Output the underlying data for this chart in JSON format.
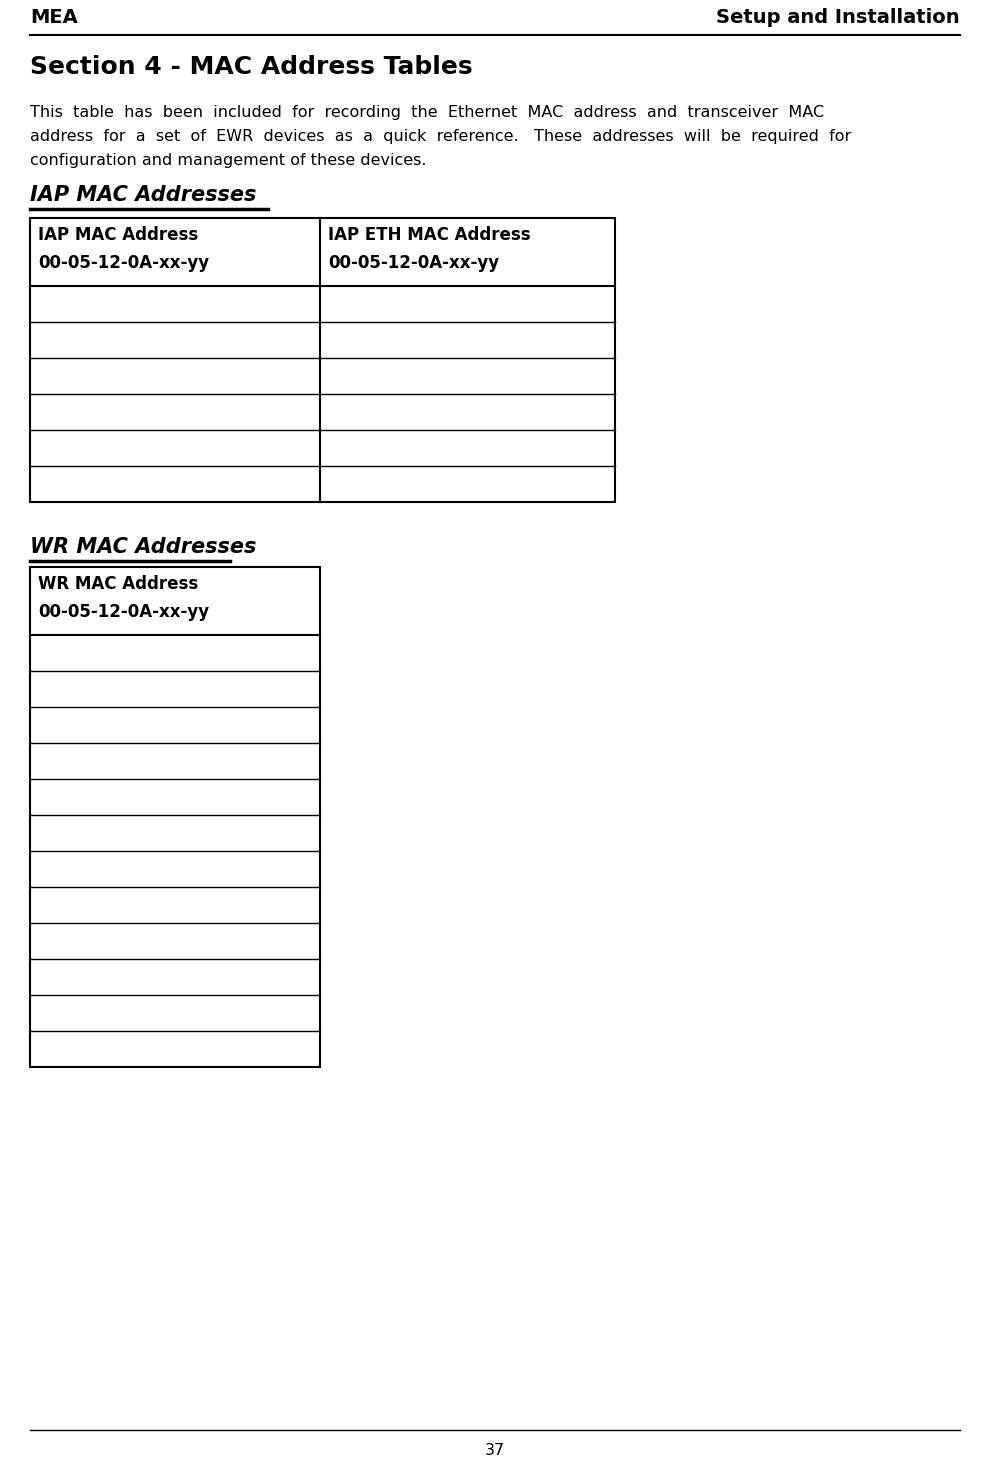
{
  "header_left": "MEA",
  "header_right": "Setup and Installation",
  "section_title": "Section 4 - MAC Address Tables",
  "desc_line1": "This  table  has  been  included  for  recording  the  Ethernet  MAC  address  and  transceiver  MAC",
  "desc_line2": "address  for  a  set  of  EWR  devices  as  a  quick  reference.   These  addresses  will  be  required  for",
  "desc_line3": "configuration and management of these devices.",
  "iap_section_title": "IAP MAC Addresses",
  "iap_col1_header1": "IAP MAC Address",
  "iap_col1_header2": "00-05-12-0A-xx-yy",
  "iap_col2_header1": "IAP ETH MAC Address",
  "iap_col2_header2": "00-05-12-0A-xx-yy",
  "iap_empty_rows": 6,
  "wr_section_title": "WR MAC Addresses",
  "wr_col1_header1": "WR MAC Address",
  "wr_col1_header2": "00-05-12-0A-xx-yy",
  "wr_empty_rows": 12,
  "page_number": "37",
  "bg_color": "#ffffff",
  "text_color": "#000000",
  "header_fontsize": 14,
  "section_title_fontsize": 18,
  "body_fontsize": 11.5,
  "table_fontsize": 12,
  "subsection_fontsize": 15
}
